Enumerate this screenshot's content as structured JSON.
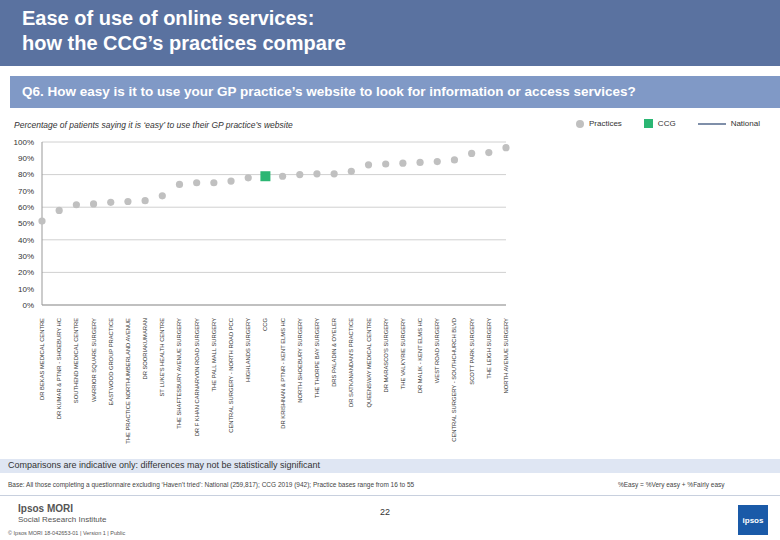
{
  "slide": {
    "title": [
      "Ease of use of online services:",
      "how the CCG’s practices compare"
    ],
    "question": "Q6. How easy is it to use your GP practice’s website to look for information or access services?",
    "note": "Comparisons are indicative only: differences may not be statistically significant",
    "base": "Base: All those completing a questionnaire excluding ‘Haven’t tried’: National (259,817); CCG 2019 (942); Practice bases range from 16 to 55",
    "definition": "%Easy = %Very easy + %Fairly easy",
    "page": "22",
    "logo": [
      "Ipsos MORI",
      "Social Research Institute"
    ],
    "copyright": "© Ipsos MORI     18-042653-01 | Version 1 | Public",
    "badge": "ipsos"
  },
  "chart_data": {
    "type": "scatter",
    "subtitle": "Percentage of patients saying it is ‘easy’ to use their GP practice’s website",
    "categories": [
      "DR BEKAS MEDICAL CENTRE",
      "DR KUMAR & PTNR - SHOEBURY HC",
      "SOUTHEND MEDICAL CENTRE",
      "WARRIOR SQUARE SURGERY",
      "EASTWOOD GROUP PRACTICE",
      "THE PRACTICE NORTHUMBERLAND AVENUE",
      "DR SOORIAKUMARAN",
      "ST LUKE'S HEALTH CENTRE",
      "THE SHAFTESBURY AVENUE SURGERY",
      "DR F KHAN CARNARVON ROAD SURGERY",
      "THE PALL MALL SURGERY",
      "CENTRAL SURGERY - NORTH ROAD PCC",
      "HIGHLANDS SURGERY",
      "CCG",
      "DR KRISHNAN & PTNR - KENT ELMS HC",
      "NORTH SHOEBURY SURGERY",
      "THE THORPE BAY SURGERY",
      "DRS PALADIN & OYELER",
      "DR SATKANANDAN'S PRACTICE",
      "QUEENSWAY MEDICAL CENTRE",
      "DR MARASCO'S SURGERY",
      "THE VALKYRIE SURGERY",
      "DR MALIK - KENT ELMS HC",
      "WEST ROAD SURGERY",
      "CENTRAL SURGERY - SOUTHCHURCH BLVD",
      "SCOTT PARK SURGERY",
      "THE LEIGH SURGERY",
      "NORTH AVENUE SURGERY"
    ],
    "series": [
      {
        "name": "Practices",
        "color": "#c0c0c0",
        "marker": "circle",
        "values": [
          51.5,
          58,
          61.5,
          62,
          63,
          63.5,
          64,
          67,
          74,
          75,
          75,
          76,
          78,
          null,
          79,
          80,
          80.5,
          80.5,
          82,
          86,
          86.5,
          87,
          87.5,
          88,
          89,
          93,
          93.5,
          96.5
        ]
      },
      {
        "name": "CCG",
        "color": "#2bb673",
        "marker": "square",
        "values": [
          null,
          null,
          null,
          null,
          null,
          null,
          null,
          null,
          null,
          null,
          null,
          null,
          null,
          79,
          null,
          null,
          null,
          null,
          null,
          null,
          null,
          null,
          null,
          null,
          null,
          null,
          null,
          null
        ]
      },
      {
        "name": "National",
        "color": "#7f8fa9",
        "type": "line",
        "line_style": "solid",
        "values": [
          null,
          null,
          null,
          null,
          null,
          null,
          null,
          null,
          null,
          null,
          null,
          null,
          null,
          null,
          null,
          null,
          null,
          null,
          null,
          null,
          null,
          null,
          null,
          null,
          null,
          null,
          null,
          null
        ]
      }
    ],
    "ylim": [
      0,
      100
    ],
    "yticks": [
      {
        "value": 0,
        "label": "0%"
      },
      {
        "value": 10,
        "label": "10%"
      },
      {
        "value": 20,
        "label": "20%"
      },
      {
        "value": 30,
        "label": "30%"
      },
      {
        "value": 40,
        "label": "40%"
      },
      {
        "value": 50,
        "label": "50%"
      },
      {
        "value": 60,
        "label": "60%"
      },
      {
        "value": 70,
        "label": "70%"
      },
      {
        "value": 80,
        "label": "80%"
      },
      {
        "value": 90,
        "label": "90%"
      },
      {
        "value": 100,
        "label": "100%"
      }
    ],
    "grid": true,
    "legend": "top right"
  }
}
